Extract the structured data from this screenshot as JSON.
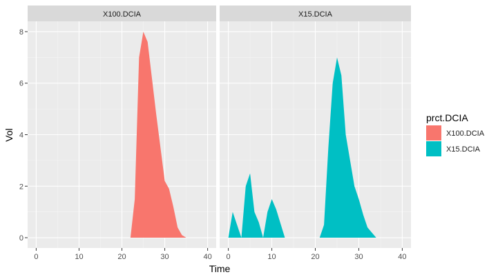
{
  "chart_data": {
    "type": "area",
    "facets": [
      "X100.DCIA",
      "X15.DCIA"
    ],
    "xlabel": "Time",
    "ylabel": "Vol",
    "xlim": [
      -2,
      42
    ],
    "ylim": [
      -0.4,
      8.4
    ],
    "x_ticks": [
      0,
      10,
      20,
      30,
      40
    ],
    "y_ticks": [
      0,
      2,
      4,
      6,
      8
    ],
    "grid": true,
    "legend": {
      "title": "prct.DCIA",
      "position": "right",
      "entries": [
        "X100.DCIA",
        "X15.DCIA"
      ]
    },
    "series": [
      {
        "name": "X100.DCIA",
        "color": "#F8766D",
        "x": [
          22,
          23,
          24,
          25,
          26,
          27,
          28,
          29,
          30,
          31,
          32,
          33,
          34,
          35
        ],
        "values": [
          0,
          1.5,
          7.0,
          8.0,
          7.6,
          6.2,
          4.8,
          3.5,
          2.2,
          1.9,
          1.2,
          0.4,
          0.1,
          0
        ]
      },
      {
        "name": "X15.DCIA",
        "color": "#00BFC4",
        "x": [
          0,
          1,
          3,
          4,
          5,
          6,
          7,
          8,
          9,
          10,
          11,
          13,
          21,
          22,
          23,
          24,
          25,
          26,
          27,
          28,
          29,
          30,
          31,
          32,
          33,
          34
        ],
        "values": [
          0,
          1.0,
          0,
          2.0,
          2.5,
          1.0,
          0.6,
          0,
          1.0,
          1.5,
          1.1,
          0,
          0,
          0.5,
          3.5,
          6.0,
          7.0,
          6.3,
          4.0,
          3.0,
          2.0,
          1.5,
          0.9,
          0.4,
          0.2,
          0
        ]
      }
    ]
  }
}
